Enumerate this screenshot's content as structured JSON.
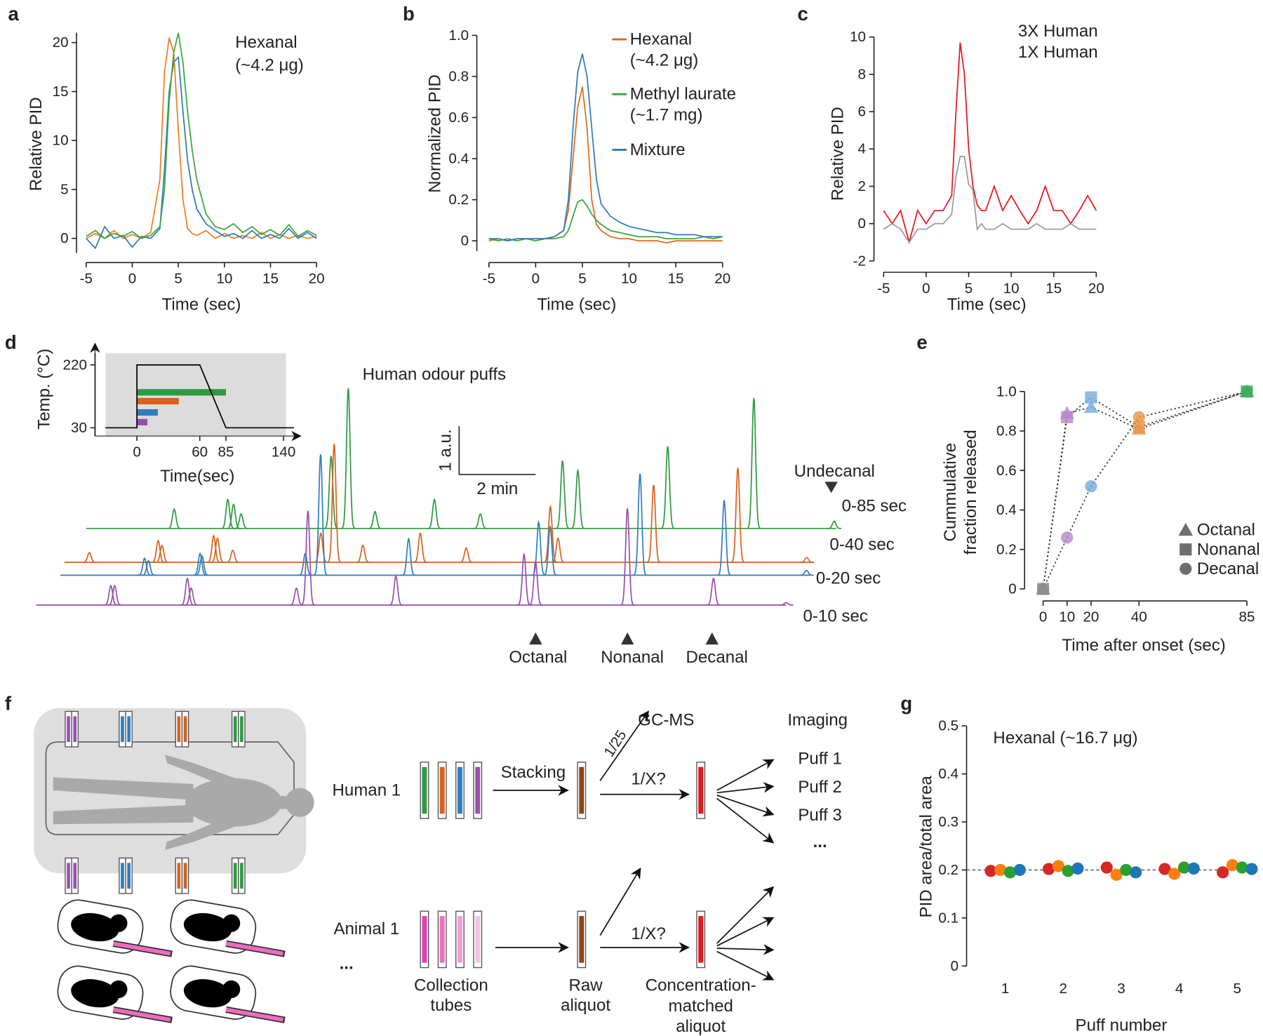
{
  "panel_labels": [
    "a",
    "b",
    "c",
    "d",
    "e",
    "f",
    "g"
  ],
  "chart_data": [
    {
      "type": "line",
      "xlabel": "Time (sec)",
      "ylabel": "Relative PID",
      "annotation": [
        "Hexanal",
        "(~4.2 μg)"
      ],
      "x": [
        -5,
        -4,
        -3,
        -2,
        -1,
        0,
        1,
        2,
        3,
        3.5,
        4,
        4.5,
        5,
        5.5,
        6,
        6.5,
        7,
        8,
        9,
        10,
        11,
        12,
        13,
        14,
        15,
        16,
        17,
        18,
        19,
        20
      ],
      "xlim": [
        -5,
        20
      ],
      "xticks": [
        -5,
        0,
        5,
        10,
        15,
        20
      ],
      "ylim": [
        -1.5,
        21
      ],
      "yticks": [
        0,
        5,
        10,
        15,
        20
      ],
      "series": [
        {
          "color": "#f07d1a",
          "values": [
            0,
            0.5,
            0,
            0.8,
            0,
            0.4,
            0,
            0.6,
            6,
            17,
            20.5,
            19,
            11,
            4,
            1,
            0.5,
            0.3,
            0.8,
            0,
            0.5,
            0,
            0.3,
            0,
            0.6,
            0,
            0.4,
            0,
            0.3,
            0,
            0.2
          ]
        },
        {
          "color": "#2b7bba",
          "values": [
            0,
            -1,
            1.2,
            0,
            0.3,
            -0.9,
            0.2,
            0,
            1,
            7,
            15,
            18,
            18.5,
            13,
            8,
            5,
            3,
            1.5,
            0.8,
            0.2,
            0.5,
            0,
            0.8,
            0,
            0.4,
            0,
            1,
            0,
            0.6,
            0
          ]
        },
        {
          "color": "#3aa53a",
          "values": [
            0.2,
            0.8,
            0,
            0.5,
            0.2,
            0.7,
            0,
            0.3,
            1.2,
            5,
            14,
            19,
            21,
            18,
            13,
            9,
            6,
            2.5,
            1.2,
            0.9,
            1.5,
            0.6,
            1.2,
            0.4,
            0.9,
            0.3,
            1.4,
            0.2,
            0.8,
            0.3
          ]
        }
      ]
    },
    {
      "type": "line",
      "xlabel": "Time (sec)",
      "ylabel": "Normalized PID",
      "legend": "upper right",
      "x": [
        -5,
        -4,
        -3,
        -2,
        -1,
        0,
        1,
        2,
        3,
        3.5,
        4,
        4.5,
        5,
        5.5,
        6,
        6.5,
        7,
        8,
        9,
        10,
        11,
        12,
        13,
        14,
        15,
        16,
        17,
        18,
        19,
        20
      ],
      "xlim": [
        -5,
        20
      ],
      "xticks": [
        -5,
        0,
        5,
        10,
        15,
        20
      ],
      "ylim": [
        -0.05,
        1
      ],
      "yticks": [
        0,
        0.2,
        0.4,
        0.6,
        0.8,
        {
          "value": 1,
          "label": "1.0"
        }
      ],
      "series": [
        {
          "name": "Hexanal",
          "subname": "(~4.2 μg)",
          "color": "#e0691a",
          "values": [
            0,
            0.01,
            0,
            0.01,
            0.01,
            0.01,
            0.01,
            0.02,
            0.05,
            0.15,
            0.4,
            0.65,
            0.75,
            0.55,
            0.2,
            0.08,
            0.05,
            0.02,
            0.01,
            0.01,
            0,
            0,
            0,
            -0.01,
            0,
            0,
            0,
            0,
            0,
            0
          ]
        },
        {
          "name": "Methyl laurate",
          "subname": "(~1.7 mg)",
          "color": "#3aa53a",
          "values": [
            0.01,
            0,
            0.01,
            0,
            0.01,
            0,
            0.01,
            0.01,
            0.02,
            0.05,
            0.12,
            0.19,
            0.2,
            0.17,
            0.13,
            0.1,
            0.08,
            0.05,
            0.04,
            0.03,
            0.02,
            0.02,
            0.02,
            0.01,
            0.01,
            0.01,
            0.01,
            0.02,
            0.01,
            0.02
          ]
        },
        {
          "name": "Mixture",
          "color": "#2b7bba",
          "values": [
            0.01,
            0.01,
            0,
            0.01,
            0.01,
            0.01,
            0.01,
            0.02,
            0.05,
            0.2,
            0.55,
            0.82,
            0.91,
            0.8,
            0.55,
            0.3,
            0.18,
            0.12,
            0.09,
            0.07,
            0.06,
            0.05,
            0.04,
            0.04,
            0.03,
            0.03,
            0.03,
            0.02,
            0.02,
            0.02
          ]
        }
      ]
    },
    {
      "type": "line",
      "xlabel": "Time (sec)",
      "ylabel": "Relative PID",
      "legend": "upper right",
      "x": [
        -5,
        -4,
        -3,
        -2,
        -1,
        0,
        1,
        2,
        3,
        3.5,
        4,
        4.5,
        5,
        5.5,
        6,
        6.5,
        7,
        8,
        9,
        10,
        11,
        12,
        13,
        14,
        15,
        16,
        17,
        18,
        19,
        20
      ],
      "xlim": [
        -5,
        20
      ],
      "xticks": [
        -5,
        0,
        5,
        10,
        15,
        20
      ],
      "ylim": [
        -2,
        10
      ],
      "yticks": [
        -2,
        0,
        2,
        4,
        6,
        8,
        10
      ],
      "series": [
        {
          "name": "3X Human",
          "color": "#e8141b",
          "values": [
            0.7,
            0,
            0.7,
            -1,
            0.7,
            0,
            0.7,
            0.7,
            1.5,
            6,
            9.7,
            8,
            4,
            2,
            1,
            0.7,
            0.7,
            2,
            0.7,
            1.5,
            0.7,
            0,
            0.7,
            2,
            0.7,
            0.7,
            0,
            0.7,
            1.5,
            0.7
          ]
        },
        {
          "name": "1X Human",
          "color": "#999999",
          "values": [
            -0.3,
            0,
            -0.3,
            -1,
            -0.3,
            -0.3,
            0,
            0,
            0.5,
            2.5,
            3.6,
            3.6,
            2.1,
            1.8,
            -0.3,
            0,
            -0.3,
            -0.3,
            0,
            -0.3,
            -0.3,
            -0.3,
            0,
            -0.3,
            -0.3,
            -0.3,
            0,
            -0.3,
            -0.3,
            -0.3
          ]
        }
      ]
    },
    {
      "type": "profile",
      "xlabel": "Time(sec)",
      "ylabel": "Temp. (°C)",
      "x": [
        -30,
        0,
        0,
        60,
        85,
        150
      ],
      "values": [
        30,
        30,
        220,
        220,
        30,
        30
      ],
      "color": "#000000",
      "xlim": [
        -30,
        150
      ],
      "xticks": [
        0,
        60,
        85,
        140
      ],
      "ylim": [
        5,
        255
      ],
      "yticks": [
        30,
        220
      ],
      "bars": [
        {
          "value": 85,
          "color": "#2e9a3f"
        },
        {
          "value": 40,
          "color": "#d9621b"
        },
        {
          "value": 20,
          "color": "#2f7dc0"
        },
        {
          "value": 10,
          "color": "#9a4fb0"
        }
      ]
    },
    {
      "type": "chromatogram",
      "title": "Human odour puffs",
      "scale_bar": {
        "x": {
          "value": 2,
          "label": "2 min"
        },
        "y": {
          "value": 1,
          "label": "1 a.u."
        }
      },
      "annotations": [
        "Undecanal",
        "Octanal",
        "Nonanal",
        "Decanal"
      ],
      "series": [
        {
          "name": "0-85 sec",
          "color": "#2e9a3f",
          "x": [
            2.3,
            3.7,
            3.85,
            4.05,
            6.4,
            6.85,
            7.55,
            9.1,
            10.3,
            12.45,
            12.85,
            15.2,
            17.45,
            19.55
          ],
          "values": [
            0.4,
            0.6,
            0.5,
            0.3,
            1.5,
            2.9,
            0.35,
            0.6,
            0.3,
            1.4,
            1.2,
            1.7,
            2.7,
            0.15
          ]
        },
        {
          "name": "0-40 sec",
          "color": "#d9621b",
          "x": [
            0.65,
            2.45,
            2.55,
            3.9,
            4.0,
            4.4,
            6.7,
            7.05,
            7.8,
            9.3,
            10.5,
            12.7,
            12.9,
            15.4,
            17.6,
            19.4
          ],
          "values": [
            0.2,
            0.45,
            0.35,
            0.55,
            0.5,
            0.25,
            0.6,
            2.45,
            0.35,
            0.6,
            0.3,
            1.15,
            0.5,
            1.6,
            1.95,
            0.1
          ]
        },
        {
          "name": "0-20 sec",
          "color": "#2f7dc0",
          "x": [
            2.2,
            2.3,
            3.65,
            3.7,
            6.4,
            6.8,
            9.1,
            12.5,
            12.8,
            15.15,
            17.35,
            19.5
          ],
          "values": [
            0.35,
            0.3,
            0.45,
            0.4,
            0.45,
            2.5,
            0.75,
            1.1,
            1.0,
            2.1,
            1.55,
            0.1
          ]
        },
        {
          "name": "0-10 sec",
          "color": "#9a4fb0",
          "x": [
            1.95,
            2.05,
            3.95,
            4.05,
            6.8,
            7.1,
            9.4,
            12.75,
            13.05,
            15.45,
            17.7,
            19.6
          ],
          "values": [
            0.4,
            0.4,
            0.55,
            0.35,
            0.35,
            1.95,
            0.6,
            1.05,
            0.9,
            2.0,
            0.55,
            0.05
          ]
        }
      ]
    },
    {
      "type": "scatter",
      "xlabel": "Time after onset (sec)",
      "ylabel": [
        "Cummulative",
        "fraction released"
      ],
      "legend": "lower right",
      "xlim": [
        0,
        85
      ],
      "xticks": [
        0,
        10,
        20,
        40,
        85
      ],
      "ylim": [
        0,
        1
      ],
      "yticks": [
        0,
        0.2,
        0.4,
        0.6,
        0.8,
        {
          "value": 1,
          "label": "1.0"
        }
      ],
      "point_colors": [
        "#8c8c8c",
        "#b784cf",
        "#76aadb",
        "#e8924a",
        "#3cae5a"
      ],
      "legend_color": "#6e6e6e",
      "series": [
        {
          "name": "Octanal",
          "marker": "triangle",
          "x": [
            0,
            10,
            20,
            40,
            85
          ],
          "values": [
            0,
            0.89,
            0.92,
            0.81,
            1.0
          ]
        },
        {
          "name": "Nonanal",
          "marker": "square",
          "x": [
            0,
            10,
            20,
            40,
            85
          ],
          "values": [
            0,
            0.87,
            0.97,
            0.82,
            1.0
          ]
        },
        {
          "name": "Decanal",
          "marker": "circle",
          "x": [
            0,
            10,
            20,
            40,
            85
          ],
          "values": [
            0,
            0.26,
            0.52,
            0.87,
            1.0
          ]
        }
      ]
    },
    {
      "type": "dot",
      "xlabel": "Puff number",
      "ylabel": "PID area/total area",
      "annotation": "Hexanal (~16.7 μg)",
      "categories": [
        "1",
        "2",
        "3",
        "4",
        "5"
      ],
      "ylim": [
        0,
        0.5
      ],
      "yticks": [
        0,
        0.1,
        0.2,
        0.3,
        0.4,
        0.5
      ],
      "hline": 0.2,
      "series": [
        {
          "color": "#d62728",
          "values": [
            0.198,
            0.202,
            0.205,
            0.202,
            0.195
          ]
        },
        {
          "color": "#ff7f0e",
          "values": [
            0.2,
            0.208,
            0.19,
            0.192,
            0.21
          ]
        },
        {
          "color": "#2ca02c",
          "values": [
            0.195,
            0.198,
            0.2,
            0.205,
            0.205
          ]
        },
        {
          "color": "#1f77b4",
          "values": [
            0.2,
            0.203,
            0.195,
            0.203,
            0.202
          ]
        }
      ]
    }
  ],
  "diagram": {
    "rows": [
      "Human 1",
      "Animal 1"
    ],
    "more_rows": "...",
    "stacking": "Stacking",
    "split": "1/25",
    "gcms": "GC-MS",
    "dilution": [
      "1/X?",
      "1/X?"
    ],
    "imaging": "Imaging",
    "puffs": [
      "Puff 1",
      "Puff 2",
      "Puff 3"
    ],
    "more_puffs": "...",
    "captions": [
      [
        "Collection",
        "tubes"
      ],
      [
        "Raw",
        "aliquot"
      ],
      [
        "Concentration-",
        "matched",
        "aliquot"
      ]
    ]
  }
}
